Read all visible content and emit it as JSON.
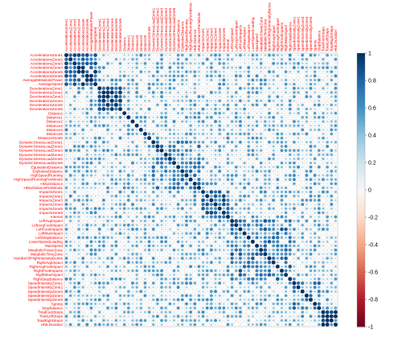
{
  "chart_data": {
    "type": "heatmap",
    "subtype": "correlation-matrix-circles",
    "title": "",
    "variables": [
      "AccelerationsZone1",
      "AccelerationsZone2",
      "AccelerationsZone3",
      "AccelerationsZone4",
      "AccelerationsZone5",
      "AccelerationsZone6",
      "AverageMetabolicPower",
      "AverageSpeed",
      "DecelerationsZone1",
      "DecelerationsZone2",
      "DecelerationsZone3",
      "DecelerationsZone4",
      "DecelerationsZone5",
      "DecelerationsZone6",
      "Distance",
      "Distance1",
      "Distance2",
      "Distance3",
      "Distance4",
      "Distance5",
      "DistanceZone6",
      "DynamicStressLoadZone1",
      "DynamicStressLoadZone2",
      "DynamicStressLoadZone3",
      "DynamicStressLoadZone4",
      "DynamicStressLoadZone5",
      "DynamicStressLoadZone6",
      "EquivalentDistance",
      "ExplosiveDistance",
      "HighSpeedRunning",
      "HighSpeedRunningPerMinute",
      "HMLDistance",
      "HMLDistancePerMinute",
      "ImpactsZone1",
      "ImpactsZone2",
      "ImpactsZone3",
      "ImpactsZone4",
      "ImpactsZone5",
      "ImpactsZone6",
      "Interval",
      "LeftAvgImpact",
      "LeftAvgFootImpact",
      "LeftFootImpacts",
      "LeftMaxImpact",
      "LeftStepBalance",
      "LowerSpeedLoading",
      "MaxSpeed",
      "MetabolicPowerZone",
      "MetabolicTimeZone",
      "NumberOfHighIntensityBursts",
      "RightAvgImpact",
      "RightAvgFootImpact",
      "RightFootImpacts",
      "RightMaxImpact",
      "RightStepBalance",
      "SpeedIntensityZone1",
      "SpeedIntensityZone2",
      "SpeedIntensityZone3",
      "SpeedIntensityZone4",
      "SpeedIntensityZone5",
      "Sprints",
      "StepBalance",
      "TotalFootSteps",
      "TotalLeftSteps",
      "TotalRightSteps",
      "HMLDuration"
    ],
    "correlation_range": [
      -1,
      1
    ],
    "colorbar": {
      "ticks": [
        "1",
        "0.8",
        "0.6",
        "0.4",
        "0.2",
        "0",
        "-0.2",
        "-0.4",
        "-0.6",
        "-0.8",
        "-1"
      ],
      "colors": {
        "positive": "#053061",
        "mid": "#f7f7f7",
        "negative": "#67001f"
      }
    },
    "blocks": [
      {
        "from": 0,
        "to": 8,
        "correlation": 0.75
      },
      {
        "from": 8,
        "to": 14,
        "correlation": 0.8
      },
      {
        "from": 14,
        "to": 21,
        "correlation": 0.35
      },
      {
        "from": 21,
        "to": 33,
        "correlation": 0.55
      },
      {
        "from": 33,
        "to": 40,
        "correlation": 0.7
      },
      {
        "from": 40,
        "to": 55,
        "correlation": 0.6
      },
      {
        "from": 55,
        "to": 62,
        "correlation": 0.55
      },
      {
        "from": 62,
        "to": 66,
        "correlation": 0.8
      }
    ],
    "off_block_correlation": 0.35,
    "label_color": "#ff0000",
    "grid": true,
    "legend_position": "right"
  }
}
